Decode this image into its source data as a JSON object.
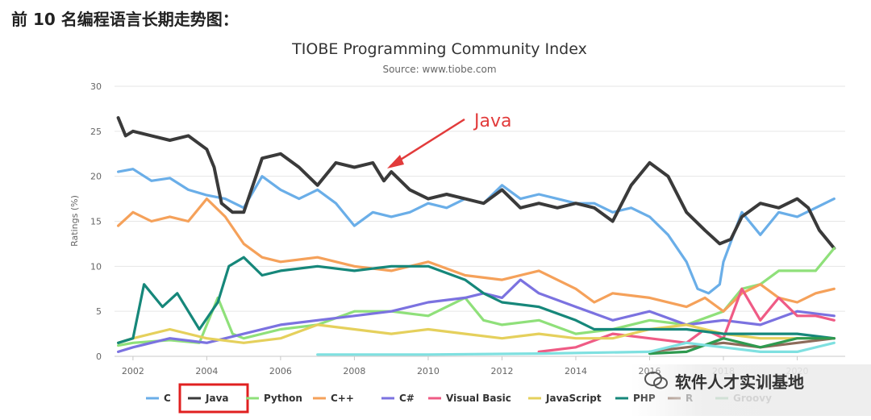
{
  "heading": "前 10 名编程语言长期走势图：",
  "annotation": {
    "text": "Java",
    "color": "#e23b3b"
  },
  "watermark": {
    "text": "软件人才实训基地",
    "icon": "wechat-icon"
  },
  "chart_data": {
    "type": "line",
    "title": "TIOBE Programming Community Index",
    "subtitle": "Source: www.tiobe.com",
    "ylabel": "Ratings (%)",
    "xlabel": "",
    "ylim": [
      0,
      30
    ],
    "xlim": [
      2001.5,
      2021.3
    ],
    "yticks": [
      0,
      5,
      10,
      15,
      20,
      25,
      30
    ],
    "xticks": [
      2002,
      2004,
      2006,
      2008,
      2010,
      2012,
      2014,
      2016,
      2018,
      2020
    ],
    "grid": true,
    "legend": "bottom",
    "highlighted_legend": "Java",
    "series": [
      {
        "name": "C",
        "color": "#6aaee8",
        "x": [
          2001.6,
          2002,
          2002.5,
          2003,
          2003.5,
          2004,
          2004.5,
          2005,
          2005.5,
          2006,
          2006.5,
          2007,
          2007.5,
          2008,
          2008.5,
          2009,
          2009.5,
          2010,
          2010.5,
          2011,
          2011.5,
          2012,
          2012.5,
          2013,
          2013.5,
          2014,
          2014.5,
          2015,
          2015.5,
          2016,
          2016.5,
          2017,
          2017.3,
          2017.6,
          2017.9,
          2018,
          2018.5,
          2019,
          2019.5,
          2020,
          2020.5,
          2021
        ],
        "y": [
          20.5,
          20.8,
          19.5,
          19.8,
          18.5,
          17.9,
          17.5,
          16.5,
          20,
          18.5,
          17.5,
          18.5,
          17,
          14.5,
          16,
          15.5,
          16,
          17,
          16.5,
          17.5,
          17,
          19,
          17.5,
          18,
          17.5,
          17,
          17,
          16,
          16.5,
          15.5,
          13.5,
          10.5,
          7.5,
          7,
          8,
          10.5,
          16,
          13.5,
          16,
          15.5,
          16.5,
          17.5
        ]
      },
      {
        "name": "Java",
        "color": "#3a3a3a",
        "x": [
          2001.6,
          2001.8,
          2002,
          2002.5,
          2003,
          2003.5,
          2004,
          2004.2,
          2004.4,
          2004.7,
          2005,
          2005.5,
          2006,
          2006.5,
          2007,
          2007.5,
          2008,
          2008.5,
          2008.8,
          2009,
          2009.5,
          2010,
          2010.5,
          2011,
          2011.5,
          2012,
          2012.5,
          2013,
          2013.5,
          2014,
          2014.5,
          2015,
          2015.5,
          2016,
          2016.5,
          2017,
          2017.5,
          2017.9,
          2018.2,
          2018.5,
          2019,
          2019.5,
          2020,
          2020.3,
          2020.6,
          2021
        ],
        "y": [
          26.5,
          24.5,
          25,
          24.5,
          24,
          24.5,
          23,
          21,
          17,
          16,
          16,
          22,
          22.5,
          21,
          19,
          21.5,
          21,
          21.5,
          19.5,
          20.5,
          18.5,
          17.5,
          18,
          17.5,
          17,
          18.5,
          16.5,
          17,
          16.5,
          17,
          16.5,
          15,
          19,
          21.5,
          20,
          16,
          14,
          12.5,
          13,
          15.5,
          17,
          16.5,
          17.5,
          16.5,
          14,
          12
        ]
      },
      {
        "name": "Python",
        "color": "#8fe07a",
        "x": [
          2001.6,
          2002,
          2003,
          2003.8,
          2004.3,
          2004.7,
          2005,
          2006,
          2007,
          2008,
          2009,
          2010,
          2011,
          2011.5,
          2012,
          2013,
          2014,
          2015,
          2016,
          2017,
          2018,
          2018.5,
          2019,
          2019.5,
          2020,
          2020.5,
          2021
        ],
        "y": [
          1.2,
          1.5,
          1.8,
          1.5,
          6.5,
          2.5,
          2,
          3,
          3.5,
          5,
          5,
          4.5,
          6.5,
          4,
          3.5,
          4,
          2.5,
          3,
          4,
          3.5,
          5,
          7.5,
          8,
          9.5,
          9.5,
          9.5,
          12
        ]
      },
      {
        "name": "C++",
        "color": "#f5a15a",
        "x": [
          2001.6,
          2002,
          2002.5,
          2003,
          2003.5,
          2004,
          2004.5,
          2005,
          2005.5,
          2006,
          2007,
          2008,
          2009,
          2010,
          2011,
          2012,
          2013,
          2014,
          2014.5,
          2015,
          2016,
          2017,
          2017.5,
          2018,
          2018.5,
          2019,
          2019.5,
          2020,
          2020.5,
          2021
        ],
        "y": [
          14.5,
          16,
          15,
          15.5,
          15,
          17.5,
          15.5,
          12.5,
          11,
          10.5,
          11,
          10,
          9.5,
          10.5,
          9,
          8.5,
          9.5,
          7.5,
          6,
          7,
          6.5,
          5.5,
          6.5,
          5,
          7,
          8,
          6.5,
          6,
          7,
          7.5
        ]
      },
      {
        "name": "C#",
        "color": "#7b72e0",
        "x": [
          2001.6,
          2002,
          2003,
          2004,
          2005,
          2006,
          2007,
          2008,
          2009,
          2010,
          2011,
          2011.5,
          2012,
          2012.5,
          2013,
          2014,
          2015,
          2016,
          2017,
          2018,
          2019,
          2020,
          2021
        ],
        "y": [
          0.5,
          1,
          2,
          1.5,
          2.5,
          3.5,
          4,
          4.5,
          5,
          6,
          6.5,
          7,
          6.5,
          8.5,
          7,
          5.5,
          4,
          5,
          3.5,
          4,
          3.5,
          5,
          4.5
        ]
      },
      {
        "name": "Visual Basic",
        "color": "#ef5b85",
        "x": [
          2013,
          2014,
          2015,
          2016,
          2017,
          2017.5,
          2018,
          2018.5,
          2019,
          2019.5,
          2020,
          2020.5,
          2021
        ],
        "y": [
          0.5,
          1,
          2.5,
          2,
          1.5,
          3,
          2,
          7.5,
          4,
          6.5,
          4.5,
          4.5,
          4
        ]
      },
      {
        "name": "JavaScript",
        "color": "#e5d05c",
        "x": [
          2001.6,
          2002,
          2003,
          2004,
          2005,
          2006,
          2007,
          2008,
          2009,
          2010,
          2011,
          2012,
          2013,
          2014,
          2015,
          2016,
          2017,
          2018,
          2019,
          2020,
          2021
        ],
        "y": [
          1.5,
          2,
          3,
          2,
          1.5,
          2,
          3.5,
          3,
          2.5,
          3,
          2.5,
          2,
          2.5,
          2,
          2,
          3,
          3.5,
          2.5,
          2,
          2,
          2
        ]
      },
      {
        "name": "PHP",
        "color": "#16877a",
        "x": [
          2001.6,
          2002,
          2002.3,
          2002.8,
          2003.2,
          2003.8,
          2004.3,
          2004.6,
          2005,
          2005.5,
          2006,
          2007,
          2008,
          2009,
          2010,
          2011,
          2011.5,
          2012,
          2013,
          2014,
          2014.5,
          2015,
          2016,
          2017,
          2018,
          2019,
          2020,
          2021
        ],
        "y": [
          1.5,
          2,
          8,
          5.5,
          7,
          3,
          6,
          10,
          11,
          9,
          9.5,
          10,
          9.5,
          10,
          10,
          8.5,
          7,
          6,
          5.5,
          4,
          3,
          3,
          3,
          3,
          2.5,
          2.5,
          2.5,
          2
        ]
      },
      {
        "name": "R",
        "color": "#8c6b5a",
        "x": [
          2016,
          2017,
          2018,
          2019,
          2020,
          2021
        ],
        "y": [
          0.5,
          1,
          1.5,
          1,
          1.5,
          2
        ]
      },
      {
        "name": "Groovy",
        "color": "#2e9a4f",
        "x": [
          2016,
          2017,
          2018,
          2019,
          2020,
          2021
        ],
        "y": [
          0.3,
          0.5,
          2,
          1,
          2,
          2
        ]
      },
      {
        "name": "",
        "color": "#7fe0e0",
        "x": [
          2007,
          2010,
          2013,
          2016,
          2017,
          2018,
          2019,
          2020,
          2021
        ],
        "y": [
          0.2,
          0.2,
          0.3,
          0.5,
          1.5,
          1,
          0.5,
          0.5,
          1.5
        ]
      }
    ]
  }
}
